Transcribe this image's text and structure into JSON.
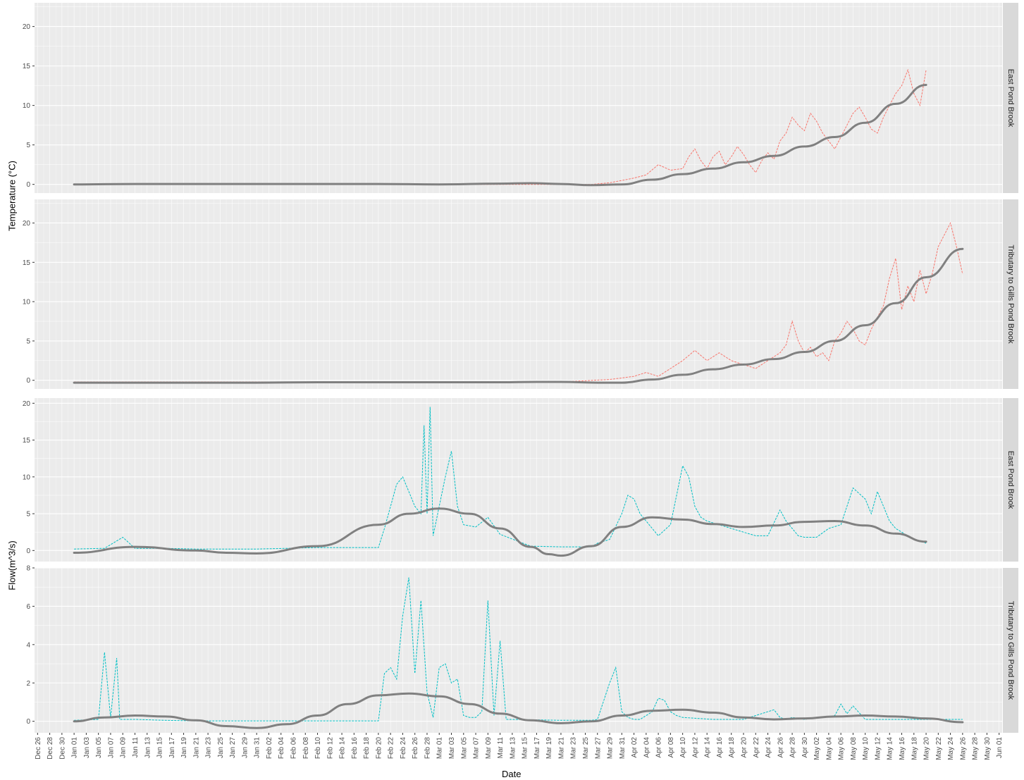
{
  "colors": {
    "panel_bg": "#EBEBEB",
    "strip_bg": "#D9D9D9",
    "temperature_series": "#F8766D",
    "flow_series": "#00BFC4",
    "smooth_line": "#808080",
    "grid": "#FFFFFF"
  },
  "chart_data": {
    "type": "line",
    "xlabel": "Date",
    "ylabels": [
      "Temperature (°C)",
      "Flow(m^3/s)"
    ],
    "grid": true,
    "facet_strip_position": "right",
    "x_tick_labels": [
      "Dec 26",
      "Dec 28",
      "Dec 30",
      "Jan 01",
      "Jan 03",
      "Jan 05",
      "Jan 07",
      "Jan 09",
      "Jan 11",
      "Jan 13",
      "Jan 15",
      "Jan 17",
      "Jan 19",
      "Jan 21",
      "Jan 23",
      "Jan 25",
      "Jan 27",
      "Jan 29",
      "Jan 31",
      "Feb 02",
      "Feb 04",
      "Feb 06",
      "Feb 08",
      "Feb 10",
      "Feb 12",
      "Feb 14",
      "Feb 16",
      "Feb 18",
      "Feb 20",
      "Feb 22",
      "Feb 24",
      "Feb 26",
      "Feb 28",
      "Mar 01",
      "Mar 03",
      "Mar 05",
      "Mar 07",
      "Mar 09",
      "Mar 11",
      "Mar 13",
      "Mar 15",
      "Mar 17",
      "Mar 19",
      "Mar 21",
      "Mar 23",
      "Mar 25",
      "Mar 27",
      "Mar 29",
      "Mar 31",
      "Apr 02",
      "Apr 04",
      "Apr 06",
      "Apr 08",
      "Apr 10",
      "Apr 12",
      "Apr 14",
      "Apr 16",
      "Apr 18",
      "Apr 20",
      "Apr 22",
      "Apr 24",
      "Apr 26",
      "Apr 28",
      "Apr 30",
      "May 02",
      "May 04",
      "May 06",
      "May 08",
      "May 10",
      "May 12",
      "May 14",
      "May 16",
      "May 18",
      "May 20",
      "May 22",
      "May 24",
      "May 26",
      "May 28",
      "May 30",
      "Jun 01"
    ],
    "x_range_days": [
      -6.5,
      152.5
    ],
    "x_day0": "Jan 01",
    "panels": [
      {
        "strip": "East Pond Brook",
        "measure": "Temperature (°C)",
        "ylim": [
          -1.1,
          23
        ],
        "yticks": [
          0,
          5,
          10,
          15,
          20
        ],
        "color": "#F8766D",
        "series_x": [
          0,
          5,
          10,
          15,
          20,
          25,
          30,
          35,
          40,
          45,
          50,
          55,
          60,
          65,
          70,
          75,
          80,
          85,
          88,
          90,
          92,
          94,
          96,
          98,
          100,
          101,
          102,
          103,
          104,
          105,
          106,
          107,
          108,
          109,
          110,
          111,
          112,
          113,
          114,
          115,
          116,
          117,
          118,
          119,
          120,
          121,
          122,
          123,
          124,
          125,
          126,
          127,
          128,
          129,
          130,
          131,
          132,
          133,
          134,
          135,
          136,
          137,
          138,
          139,
          140
        ],
        "series_y": [
          0,
          0,
          0,
          0,
          0,
          0,
          0,
          0,
          0,
          0,
          0,
          0,
          0,
          0,
          0,
          0,
          0,
          0,
          0.2,
          0.5,
          0.8,
          1.2,
          2.5,
          1.8,
          2,
          3.5,
          4.5,
          3,
          2,
          3.5,
          4.2,
          2.5,
          3.5,
          4.8,
          3.8,
          2.5,
          1.5,
          3,
          4,
          3.2,
          5.5,
          6.5,
          8.5,
          7.5,
          6.8,
          9,
          8,
          6.5,
          5.5,
          4.5,
          6,
          7.5,
          9,
          9.8,
          8.5,
          7,
          6.5,
          8.5,
          10,
          11.5,
          12.5,
          14.5,
          11.5,
          10,
          14.5
        ],
        "smooth_x": [
          0,
          10,
          20,
          30,
          40,
          50,
          60,
          70,
          75,
          80,
          85,
          90,
          95,
          100,
          105,
          110,
          115,
          120,
          125,
          130,
          135,
          140
        ],
        "smooth_y": [
          0,
          0.05,
          0.05,
          0.05,
          0.05,
          0.05,
          0,
          0.1,
          0.15,
          0.05,
          -0.1,
          0,
          0.6,
          1.3,
          2,
          2.8,
          3.6,
          4.8,
          6,
          7.8,
          10.2,
          12.6
        ]
      },
      {
        "strip": "Tributary to Gills Pond Brook",
        "measure": "Temperature (°C)",
        "ylim": [
          -1.1,
          23
        ],
        "yticks": [
          0,
          5,
          10,
          15,
          20
        ],
        "color": "#F8766D",
        "series_x": [
          0,
          10,
          20,
          30,
          40,
          50,
          60,
          70,
          80,
          88,
          90,
          92,
          94,
          96,
          98,
          100,
          102,
          104,
          106,
          108,
          110,
          112,
          114,
          116,
          117,
          118,
          119,
          120,
          121,
          122,
          123,
          124,
          125,
          126,
          127,
          128,
          129,
          130,
          131,
          132,
          133,
          134,
          135,
          136,
          137,
          138,
          139,
          140,
          141,
          142,
          143,
          144,
          145,
          146
        ],
        "series_y": [
          -0.2,
          -0.2,
          -0.2,
          -0.2,
          -0.2,
          -0.2,
          -0.2,
          -0.2,
          -0.2,
          0.1,
          0.3,
          0.5,
          1,
          0.5,
          1.5,
          2.5,
          3.8,
          2.5,
          3.5,
          2.5,
          2,
          1.5,
          2.5,
          3.5,
          4.5,
          7.5,
          5,
          3.5,
          4.2,
          3,
          3.5,
          2.5,
          5,
          6,
          7.5,
          6.5,
          5,
          4.5,
          6.5,
          8,
          9.5,
          13,
          15.5,
          9,
          12,
          10,
          14,
          11,
          13.5,
          17,
          18.5,
          20,
          17,
          13.5
        ],
        "smooth_x": [
          0,
          10,
          20,
          30,
          40,
          50,
          60,
          70,
          76,
          80,
          86,
          90,
          95,
          100,
          105,
          110,
          115,
          120,
          125,
          130,
          135,
          140,
          146
        ],
        "smooth_y": [
          -0.3,
          -0.3,
          -0.3,
          -0.3,
          -0.25,
          -0.25,
          -0.25,
          -0.25,
          -0.2,
          -0.2,
          -0.3,
          -0.3,
          0.1,
          0.7,
          1.4,
          2,
          2.7,
          3.6,
          5,
          7,
          9.8,
          13.1,
          16.7
        ]
      },
      {
        "strip": "East Pond Brook",
        "measure": "Flow(m^3/s)",
        "ylim": [
          -1.5,
          20.7
        ],
        "yticks": [
          0,
          5,
          10,
          15,
          20
        ],
        "color": "#00BFC4",
        "series_x": [
          0,
          5,
          8,
          10,
          15,
          20,
          25,
          30,
          35,
          40,
          45,
          50,
          51,
          52,
          53,
          54,
          55,
          56,
          57,
          57.5,
          58,
          58.5,
          59,
          60,
          61,
          62,
          63,
          64,
          66,
          68,
          70,
          75,
          80,
          85,
          86,
          88,
          90,
          91,
          92,
          93,
          94,
          96,
          98,
          100,
          101,
          102,
          103,
          104,
          106,
          108,
          110,
          112,
          114,
          116,
          117,
          118,
          119,
          120,
          122,
          124,
          126,
          128,
          130,
          131,
          132,
          133,
          134,
          135,
          136,
          138,
          140
        ],
        "series_y": [
          0.2,
          0.3,
          1.8,
          0.3,
          0.3,
          0.2,
          0.2,
          0.2,
          0.3,
          0.4,
          0.4,
          0.4,
          3,
          6,
          9,
          10,
          8,
          6,
          5,
          17,
          5,
          19.5,
          2,
          6,
          10,
          13.5,
          6,
          3.5,
          3.2,
          4.5,
          2.2,
          0.6,
          0.5,
          0.5,
          1,
          1.5,
          5,
          7.5,
          7,
          5,
          4,
          2,
          3.5,
          11.5,
          10,
          6,
          4.5,
          4,
          3.5,
          3,
          2.5,
          2,
          2,
          5.5,
          4,
          3,
          2,
          1.8,
          1.8,
          3,
          3.5,
          8.5,
          7,
          5,
          8,
          6,
          4,
          3,
          2.5,
          1.5,
          1
        ]
      },
      {
        "strip": "Tributary to Gills Pond Brook",
        "measure": "Flow(m^3/s)",
        "ylim": [
          -0.6,
          8.0
        ],
        "yticks": [
          0,
          2,
          4,
          6,
          8
        ],
        "color": "#00BFC4",
        "series_x": [
          0,
          4,
          5,
          6,
          7,
          7.5,
          8,
          10,
          15,
          20,
          30,
          40,
          50,
          51,
          52,
          53,
          54,
          55,
          55.5,
          56,
          57,
          58,
          59,
          60,
          61,
          62,
          63,
          64,
          65,
          66,
          67,
          68,
          69,
          70,
          71,
          72,
          80,
          85,
          86,
          88,
          89,
          90,
          91,
          92,
          93,
          95,
          96,
          97,
          98,
          99,
          100,
          105,
          110,
          115,
          116,
          117,
          118,
          120,
          125,
          126,
          127,
          128,
          130,
          135,
          140,
          145,
          146
        ],
        "series_y": [
          0.05,
          0.1,
          3.6,
          0.2,
          3.3,
          0.1,
          0.1,
          0.1,
          0.05,
          0.02,
          0.02,
          0.02,
          0.02,
          2.5,
          2.8,
          2.2,
          5.5,
          7.5,
          5,
          2.5,
          6.3,
          1.5,
          0.2,
          2.8,
          3,
          2,
          2.2,
          0.3,
          0.2,
          0.2,
          0.5,
          6.3,
          0.3,
          4.2,
          0.1,
          0.1,
          0.05,
          0.05,
          0.1,
          2,
          2.8,
          0.5,
          0.2,
          0.1,
          0.1,
          0.5,
          1.2,
          1.1,
          0.5,
          0.3,
          0.2,
          0.1,
          0.1,
          0.6,
          0.2,
          0.1,
          0.2,
          0.1,
          0.3,
          0.9,
          0.4,
          0.8,
          0.1,
          0.1,
          0.1,
          0.1,
          0.1
        ]
      }
    ]
  }
}
